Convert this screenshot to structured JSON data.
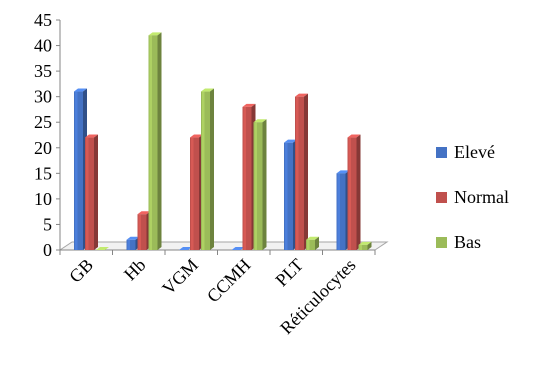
{
  "chart_data": {
    "type": "bar",
    "style": "3d-clustered-column",
    "categories": [
      "GB",
      "Hb",
      "VGM",
      "CCMH",
      "PLT",
      "Réticulocytes"
    ],
    "series": [
      {
        "name": "Elevé",
        "color": "#4472C4",
        "values": [
          31,
          2,
          0,
          0,
          21,
          15
        ]
      },
      {
        "name": "Normal",
        "color": "#C0504D",
        "values": [
          22,
          7,
          22,
          28,
          30,
          22
        ]
      },
      {
        "name": "Bas",
        "color": "#9BBB59",
        "values": [
          0,
          42,
          31,
          25,
          2,
          1
        ]
      }
    ],
    "ylim": [
      0,
      45
    ],
    "yticks": [
      "0",
      "5",
      "10",
      "15",
      "20",
      "25",
      "30",
      "35",
      "40",
      "45"
    ],
    "grid": false,
    "legend_position": "right"
  }
}
